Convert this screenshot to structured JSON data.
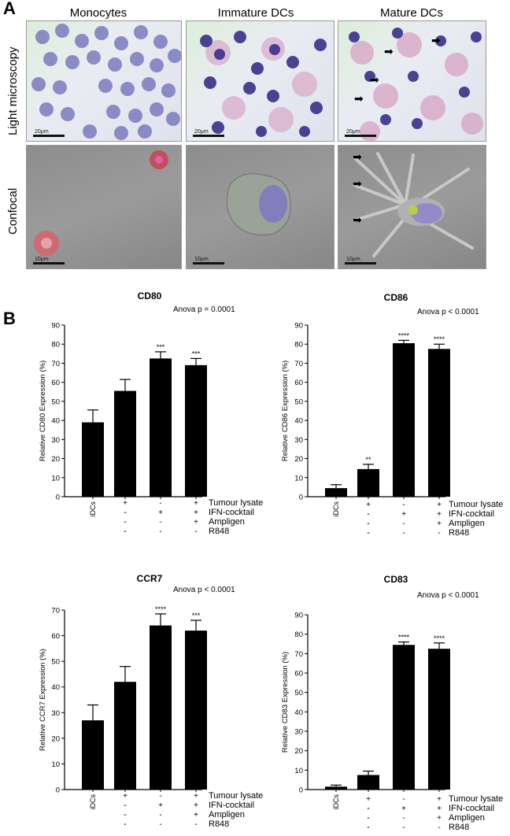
{
  "panel_a": {
    "letter": "A",
    "columns": [
      "Monocytes",
      "Immature DCs",
      "Mature DCs"
    ],
    "rows": [
      "Light microscopy",
      "Confocal"
    ],
    "scale_light": "20μm",
    "scale_confocal": "10μm"
  },
  "panel_b": {
    "letter": "B",
    "condition_labels": [
      "Tumour lysate",
      "IFN-cocktail",
      "Ampligen",
      "R848"
    ],
    "condition_signs": [
      [
        "+",
        "-",
        "+",
        "+"
      ],
      [
        "-",
        "+",
        "+",
        "+"
      ],
      [
        "-",
        "-",
        "+",
        "+"
      ],
      [
        "-",
        "-",
        "-",
        "+"
      ]
    ]
  },
  "chart_data": [
    {
      "type": "bar",
      "title": "CD80",
      "annotation": "Anova p = 0.0001",
      "ylabel": "Relative CD80 Expression (%)",
      "ylim": [
        0,
        90
      ],
      "yticks": [
        "0",
        "10",
        "20",
        "30",
        "40",
        "50",
        "60",
        "70",
        "80",
        "90"
      ],
      "categories": [
        "iDCs",
        "",
        "",
        ""
      ],
      "values": [
        39,
        55.5,
        72.5,
        69
      ],
      "errors": [
        6.5,
        6,
        3.5,
        3.5
      ],
      "significance": [
        "",
        "",
        "***",
        "***"
      ]
    },
    {
      "type": "bar",
      "title": "CD86",
      "annotation": "Anova p < 0.0001",
      "ylabel": "Relative CD86 Expression (%)",
      "ylim": [
        0,
        90
      ],
      "yticks": [
        "0",
        "10",
        "20",
        "30",
        "40",
        "50",
        "60",
        "70",
        "80",
        "90"
      ],
      "categories": [
        "iDCs",
        "",
        "",
        ""
      ],
      "values": [
        4.5,
        14.5,
        80.5,
        77.5
      ],
      "errors": [
        1.8,
        2.5,
        1.5,
        2.5
      ],
      "significance": [
        "",
        "**",
        "****",
        "****"
      ]
    },
    {
      "type": "bar",
      "title": "CCR7",
      "annotation": "Anova p < 0.0001",
      "ylabel": "Relative CCR7 Expression (%)",
      "ylim": [
        0,
        70
      ],
      "yticks": [
        "0",
        "10",
        "20",
        "30",
        "40",
        "50",
        "60",
        "70"
      ],
      "categories": [
        "iDCs",
        "",
        "",
        ""
      ],
      "values": [
        27,
        42,
        64,
        62
      ],
      "errors": [
        6,
        6,
        4.5,
        4
      ],
      "significance": [
        "",
        "",
        "****",
        "***"
      ]
    },
    {
      "type": "bar",
      "title": "CD83",
      "annotation": "Anova p < 0.0001",
      "ylabel": "Relative CD83 Expression (%)",
      "ylim": [
        0,
        90
      ],
      "yticks": [
        "0",
        "10",
        "20",
        "30",
        "40",
        "50",
        "60",
        "70",
        "80",
        "90"
      ],
      "categories": [
        "iDCs",
        "",
        "",
        ""
      ],
      "values": [
        1.5,
        7.5,
        74.5,
        72.5
      ],
      "errors": [
        0.8,
        2,
        1.5,
        3
      ],
      "significance": [
        "",
        "",
        "****",
        "****"
      ]
    }
  ]
}
